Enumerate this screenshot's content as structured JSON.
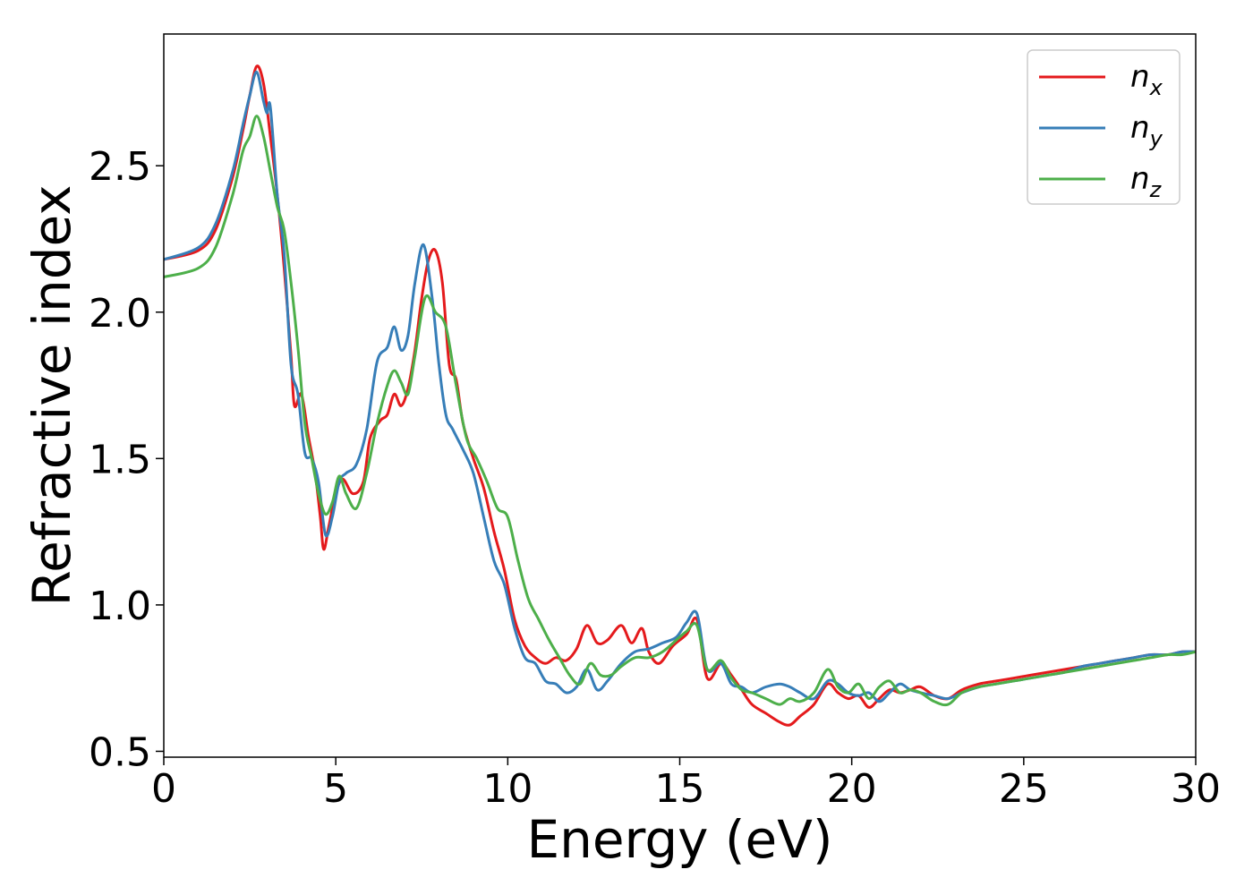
{
  "chart_data": {
    "type": "line",
    "title": "",
    "xlabel": "Energy (eV)",
    "ylabel": "Refractive index",
    "xlim": [
      0,
      30
    ],
    "ylim": [
      0.48,
      2.95
    ],
    "xticks": [
      0,
      5,
      10,
      15,
      20,
      25,
      30
    ],
    "yticks": [
      0.5,
      1.0,
      1.5,
      2.0,
      2.5
    ],
    "grid": false,
    "legend_position": "top-right",
    "series": [
      {
        "name": "n",
        "subscript": "x",
        "color": "#e41a1c",
        "x": [
          0,
          1,
          1.5,
          2,
          2.3,
          2.5,
          2.7,
          2.9,
          3.1,
          3.3,
          3.5,
          3.7,
          3.8,
          4.0,
          4.2,
          4.4,
          4.55,
          4.65,
          4.8,
          5.0,
          5.2,
          5.5,
          5.8,
          6.0,
          6.3,
          6.5,
          6.7,
          6.9,
          7.1,
          7.3,
          7.5,
          7.7,
          7.9,
          8.1,
          8.3,
          8.5,
          8.7,
          9.0,
          9.3,
          9.6,
          9.9,
          10.2,
          10.5,
          10.8,
          11.1,
          11.4,
          11.7,
          12.0,
          12.3,
          12.6,
          12.9,
          13.3,
          13.6,
          13.9,
          14.1,
          14.4,
          14.8,
          15.2,
          15.5,
          15.8,
          16.2,
          16.5,
          16.8,
          17.1,
          17.5,
          17.9,
          18.2,
          18.5,
          18.9,
          19.3,
          19.6,
          19.9,
          20.2,
          20.5,
          20.8,
          21.1,
          21.4,
          21.7,
          22.0,
          22.4,
          22.8,
          23.2,
          23.7,
          24.2,
          24.7,
          25.2,
          25.7,
          26.2,
          26.7,
          27.2,
          27.7,
          28.2,
          28.7,
          29.2,
          29.6,
          30
        ],
        "y": [
          2.18,
          2.21,
          2.28,
          2.46,
          2.62,
          2.74,
          2.84,
          2.78,
          2.6,
          2.4,
          2.15,
          1.85,
          1.68,
          1.72,
          1.58,
          1.45,
          1.3,
          1.19,
          1.27,
          1.38,
          1.43,
          1.38,
          1.42,
          1.57,
          1.63,
          1.65,
          1.72,
          1.68,
          1.74,
          1.87,
          2.05,
          2.18,
          2.21,
          2.1,
          1.82,
          1.77,
          1.62,
          1.5,
          1.4,
          1.25,
          1.12,
          0.95,
          0.86,
          0.82,
          0.8,
          0.82,
          0.81,
          0.85,
          0.93,
          0.87,
          0.88,
          0.93,
          0.87,
          0.92,
          0.84,
          0.8,
          0.86,
          0.9,
          0.95,
          0.75,
          0.8,
          0.76,
          0.71,
          0.66,
          0.63,
          0.6,
          0.59,
          0.62,
          0.66,
          0.73,
          0.7,
          0.68,
          0.69,
          0.65,
          0.68,
          0.71,
          0.7,
          0.71,
          0.72,
          0.69,
          0.68,
          0.71,
          0.73,
          0.74,
          0.75,
          0.76,
          0.77,
          0.78,
          0.79,
          0.8,
          0.81,
          0.82,
          0.83,
          0.83,
          0.84,
          0.84
        ]
      },
      {
        "name": "n",
        "subscript": "y",
        "color": "#377eb8",
        "x": [
          0,
          1,
          1.5,
          2,
          2.3,
          2.5,
          2.7,
          2.9,
          3.0,
          3.1,
          3.3,
          3.5,
          3.7,
          3.9,
          4.1,
          4.3,
          4.5,
          4.7,
          4.9,
          5.1,
          5.3,
          5.6,
          5.9,
          6.2,
          6.5,
          6.7,
          6.9,
          7.1,
          7.3,
          7.55,
          7.8,
          8.0,
          8.2,
          8.4,
          8.7,
          9.0,
          9.3,
          9.6,
          9.9,
          10.2,
          10.5,
          10.8,
          11.1,
          11.4,
          11.7,
          12.0,
          12.3,
          12.6,
          12.9,
          13.3,
          13.7,
          14.1,
          14.5,
          14.9,
          15.2,
          15.5,
          15.8,
          16.2,
          16.5,
          16.8,
          17.1,
          17.5,
          17.9,
          18.2,
          18.5,
          18.9,
          19.3,
          19.6,
          19.9,
          20.2,
          20.5,
          20.8,
          21.1,
          21.4,
          21.7,
          22.0,
          22.4,
          22.8,
          23.2,
          23.7,
          24.2,
          24.7,
          25.2,
          25.7,
          26.2,
          26.7,
          27.2,
          27.7,
          28.2,
          28.7,
          29.2,
          29.6,
          30
        ],
        "y": [
          2.18,
          2.22,
          2.3,
          2.48,
          2.64,
          2.74,
          2.82,
          2.72,
          2.68,
          2.7,
          2.4,
          2.2,
          1.82,
          1.72,
          1.52,
          1.5,
          1.42,
          1.24,
          1.3,
          1.42,
          1.45,
          1.48,
          1.6,
          1.83,
          1.88,
          1.95,
          1.87,
          1.92,
          2.1,
          2.23,
          2.05,
          1.82,
          1.65,
          1.6,
          1.53,
          1.45,
          1.3,
          1.15,
          1.07,
          0.92,
          0.82,
          0.8,
          0.74,
          0.73,
          0.7,
          0.72,
          0.78,
          0.71,
          0.74,
          0.8,
          0.84,
          0.85,
          0.87,
          0.89,
          0.94,
          0.97,
          0.78,
          0.8,
          0.73,
          0.72,
          0.7,
          0.72,
          0.73,
          0.72,
          0.7,
          0.68,
          0.74,
          0.73,
          0.7,
          0.69,
          0.7,
          0.67,
          0.7,
          0.73,
          0.71,
          0.7,
          0.69,
          0.68,
          0.7,
          0.72,
          0.73,
          0.74,
          0.75,
          0.76,
          0.77,
          0.79,
          0.8,
          0.81,
          0.82,
          0.83,
          0.83,
          0.84,
          0.84
        ]
      },
      {
        "name": "n",
        "subscript": "z",
        "color": "#4daf4a",
        "x": [
          0,
          1,
          1.5,
          2,
          2.3,
          2.5,
          2.7,
          2.9,
          3.1,
          3.3,
          3.5,
          3.7,
          3.9,
          4.1,
          4.3,
          4.5,
          4.7,
          4.9,
          5.1,
          5.3,
          5.6,
          5.9,
          6.2,
          6.5,
          6.7,
          6.9,
          7.1,
          7.3,
          7.6,
          7.9,
          8.2,
          8.5,
          8.8,
          9.1,
          9.4,
          9.7,
          10.0,
          10.3,
          10.6,
          10.9,
          11.2,
          11.5,
          11.8,
          12.1,
          12.4,
          12.7,
          13.0,
          13.3,
          13.7,
          14.1,
          14.5,
          14.9,
          15.2,
          15.5,
          15.8,
          16.2,
          16.5,
          16.8,
          17.1,
          17.5,
          17.9,
          18.2,
          18.5,
          18.9,
          19.3,
          19.6,
          19.9,
          20.2,
          20.5,
          20.8,
          21.1,
          21.4,
          21.7,
          22.0,
          22.4,
          22.8,
          23.2,
          23.7,
          24.2,
          24.7,
          25.2,
          25.7,
          26.2,
          26.7,
          27.2,
          27.7,
          28.2,
          28.7,
          29.2,
          29.6,
          30
        ],
        "y": [
          2.12,
          2.15,
          2.22,
          2.4,
          2.55,
          2.6,
          2.67,
          2.6,
          2.48,
          2.36,
          2.28,
          2.1,
          1.88,
          1.62,
          1.5,
          1.38,
          1.31,
          1.35,
          1.44,
          1.38,
          1.33,
          1.45,
          1.62,
          1.75,
          1.8,
          1.76,
          1.72,
          1.85,
          2.05,
          2.0,
          1.95,
          1.75,
          1.57,
          1.5,
          1.42,
          1.33,
          1.3,
          1.15,
          1.02,
          0.95,
          0.88,
          0.82,
          0.76,
          0.73,
          0.8,
          0.76,
          0.76,
          0.79,
          0.82,
          0.82,
          0.84,
          0.88,
          0.91,
          0.93,
          0.78,
          0.81,
          0.75,
          0.71,
          0.7,
          0.68,
          0.66,
          0.68,
          0.67,
          0.7,
          0.78,
          0.72,
          0.7,
          0.73,
          0.68,
          0.72,
          0.74,
          0.7,
          0.71,
          0.7,
          0.67,
          0.66,
          0.7,
          0.72,
          0.73,
          0.74,
          0.75,
          0.76,
          0.77,
          0.78,
          0.79,
          0.8,
          0.81,
          0.82,
          0.83,
          0.83,
          0.84
        ]
      }
    ]
  }
}
